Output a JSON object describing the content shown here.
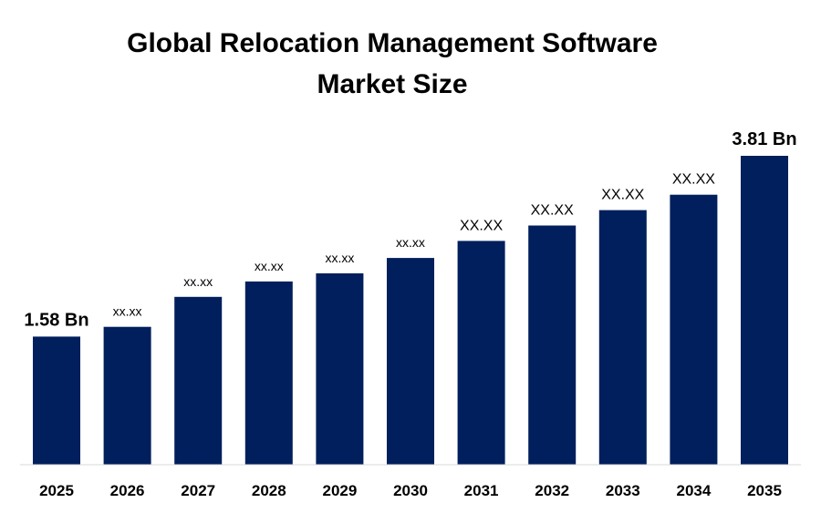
{
  "chart_data": {
    "type": "bar",
    "title_lines": [
      "Global Relocation Management Software",
      "Market Size"
    ],
    "categories": [
      "2025",
      "2026",
      "2027",
      "2028",
      "2029",
      "2030",
      "2031",
      "2032",
      "2033",
      "2034",
      "2035"
    ],
    "values": [
      1.58,
      1.7,
      2.07,
      2.26,
      2.36,
      2.55,
      2.76,
      2.95,
      3.14,
      3.33,
      3.81
    ],
    "data_labels": [
      "1.58 Bn",
      "xx.xx",
      "xx.xx",
      "xx.xx",
      "xx.xx",
      "xx.xx",
      "XX.XX",
      "XX.XX",
      "XX.XX",
      "XX.XX",
      "3.81 Bn"
    ],
    "bar_color": "#001f5c",
    "ylim": [
      0,
      3.81
    ],
    "grid": false,
    "legend": "none"
  }
}
